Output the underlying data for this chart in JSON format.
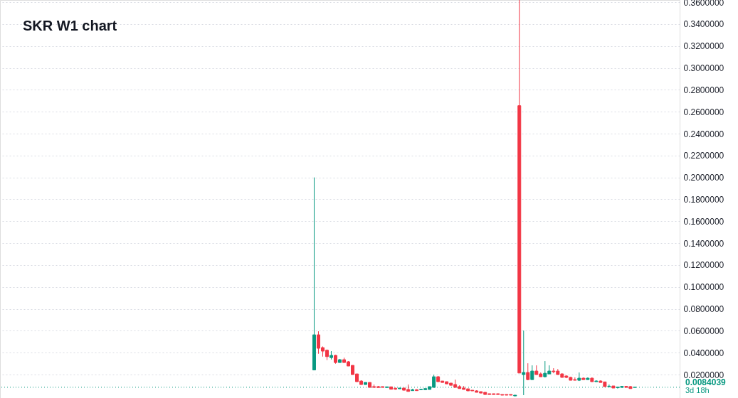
{
  "chart_data": {
    "type": "candlestick",
    "title": "SKR W1 chart",
    "categories": [
      null,
      null,
      null,
      null,
      null,
      null,
      null,
      null,
      null,
      null,
      null,
      null,
      null,
      null,
      null,
      null,
      null,
      null,
      null,
      null,
      null,
      null,
      null,
      null,
      null,
      null,
      null,
      null,
      null,
      null,
      null,
      null,
      null,
      null,
      null,
      null,
      null,
      null,
      null,
      null,
      null,
      null,
      null,
      null,
      null,
      null,
      null,
      null,
      null,
      null,
      null,
      null,
      null,
      null,
      null,
      null,
      null,
      null,
      null,
      null,
      null,
      null,
      null,
      null,
      null,
      null,
      null,
      null,
      null,
      null,
      null,
      null,
      null,
      null,
      null,
      null,
      null,
      null,
      null,
      null,
      null,
      null,
      null,
      null,
      null,
      null,
      null,
      null,
      null,
      null,
      null,
      null,
      null,
      null,
      null,
      null,
      null,
      null,
      null,
      null,
      null,
      null,
      null,
      null,
      null,
      null,
      null,
      null,
      null,
      null,
      null,
      null,
      null,
      null,
      null,
      null,
      null,
      null,
      null,
      null,
      null,
      null,
      null,
      null,
      null,
      null,
      null,
      null,
      null,
      null,
      null,
      null,
      null,
      null,
      null,
      null,
      null,
      null,
      null,
      null,
      null,
      null,
      null,
      null,
      null,
      null,
      null,
      null,
      null,
      null,
      null,
      null,
      null,
      null,
      null,
      null,
      null,
      null,
      null
    ],
    "ohlc": [
      null,
      null,
      null,
      null,
      null,
      null,
      null,
      null,
      null,
      null,
      null,
      null,
      null,
      null,
      null,
      null,
      null,
      null,
      null,
      null,
      null,
      null,
      null,
      null,
      null,
      null,
      null,
      null,
      null,
      null,
      null,
      null,
      null,
      null,
      null,
      null,
      null,
      null,
      null,
      null,
      null,
      null,
      null,
      null,
      null,
      null,
      null,
      null,
      null,
      null,
      null,
      null,
      null,
      null,
      null,
      null,
      null,
      null,
      null,
      null,
      null,
      null,
      null,
      null,
      null,
      null,
      null,
      null,
      null,
      null,
      null,
      null,
      null,
      [
        0.0242,
        0.2,
        0.024,
        0.0563
      ],
      [
        0.0563,
        0.0595,
        0.039,
        0.044
      ],
      [
        0.0446,
        0.0457,
        0.0364,
        0.0414
      ],
      [
        0.0422,
        0.0429,
        0.0332,
        0.0364
      ],
      [
        0.0355,
        0.0414,
        0.0338,
        0.0375
      ],
      [
        0.0375,
        0.038,
        0.0299,
        0.031
      ],
      [
        0.031,
        0.0342,
        0.031,
        0.0336
      ],
      [
        0.0336,
        0.0354,
        0.031,
        0.031
      ],
      [
        0.0317,
        0.0323,
        0.0278,
        0.0278
      ],
      [
        0.0284,
        0.0284,
        0.02,
        0.02
      ],
      [
        0.0206,
        0.0206,
        0.0135,
        0.0135
      ],
      [
        0.0141,
        0.0148,
        0.0109,
        0.0109
      ],
      [
        0.0109,
        0.0128,
        0.0109,
        0.0128
      ],
      [
        0.0128,
        0.0128,
        0.0083,
        0.0083
      ],
      [
        0.009,
        0.0109,
        0.0083,
        0.0083
      ],
      [
        0.009,
        0.0096,
        0.0082,
        0.0082
      ],
      [
        0.009,
        0.009,
        0.0083,
        0.0083
      ],
      [
        0.0082,
        0.0088,
        0.0082,
        0.0088
      ],
      [
        0.0088,
        0.0088,
        0.0066,
        0.0066
      ],
      [
        0.0075,
        0.0081,
        0.0062,
        0.0066
      ],
      [
        0.007,
        0.0077,
        0.007,
        0.0077
      ],
      [
        0.0077,
        0.0077,
        0.0057,
        0.0057
      ],
      [
        0.0064,
        0.0109,
        0.0046,
        0.0046
      ],
      [
        0.0053,
        0.007,
        0.0053,
        0.0062
      ],
      [
        0.0062,
        0.0066,
        0.0053,
        0.0053
      ],
      [
        0.0062,
        0.0066,
        0.0062,
        0.0066
      ],
      [
        0.0062,
        0.0072,
        0.0062,
        0.0072
      ],
      [
        0.0064,
        0.009,
        0.0064,
        0.009
      ],
      [
        0.0083,
        0.0198,
        0.0083,
        0.018
      ],
      [
        0.018,
        0.0187,
        0.0135,
        0.0135
      ],
      [
        0.0141,
        0.0141,
        0.0128,
        0.0128
      ],
      [
        0.0135,
        0.0135,
        0.0115,
        0.0115
      ],
      [
        0.0122,
        0.0122,
        0.0102,
        0.0102
      ],
      [
        0.0109,
        0.0154,
        0.0083,
        0.0083
      ],
      [
        0.009,
        0.0102,
        0.0072,
        0.0072
      ],
      [
        0.0077,
        0.0096,
        0.0064,
        0.0064
      ],
      [
        0.007,
        0.007,
        0.0051,
        0.0051
      ],
      [
        0.0057,
        0.0057,
        0.0051,
        0.0051
      ],
      [
        0.0051,
        0.0057,
        0.0038,
        0.0038
      ],
      [
        0.0044,
        0.0044,
        0.0031,
        0.0031
      ],
      [
        0.0038,
        0.0038,
        0.0018,
        0.0018
      ],
      [
        0.0025,
        0.0025,
        0.0018,
        0.0018
      ],
      [
        0.0025,
        0.0025,
        0.0018,
        0.0018
      ],
      [
        0.0025,
        0.0025,
        0.0018,
        0.0018
      ],
      [
        0.0018,
        0.0018,
        0.0012,
        0.0012
      ],
      [
        0.0018,
        0.0018,
        0.0012,
        0.0012
      ],
      [
        0.0018,
        0.0018,
        0.0012,
        0.0012
      ],
      [
        0.0005,
        0.0012,
        0.0005,
        0.0012
      ],
      [
        0.2655,
        0.362,
        0.0214,
        0.0214
      ],
      [
        0.02,
        0.0602,
        0.0012,
        0.0219
      ],
      [
        0.0219,
        0.0303,
        0.0148,
        0.0154
      ],
      [
        0.0154,
        0.0284,
        0.0154,
        0.0232
      ],
      [
        0.0232,
        0.0284,
        0.02,
        0.02
      ],
      [
        0.0206,
        0.0219,
        0.018,
        0.018
      ],
      [
        0.018,
        0.0323,
        0.0174,
        0.0212
      ],
      [
        0.0206,
        0.0284,
        0.0206,
        0.0232
      ],
      [
        0.0232,
        0.0258,
        0.0212,
        0.0226
      ],
      [
        0.0232,
        0.0251,
        0.02,
        0.02
      ],
      [
        0.0206,
        0.0212,
        0.0174,
        0.0174
      ],
      [
        0.0187,
        0.0193,
        0.0167,
        0.0174
      ],
      [
        0.0174,
        0.018,
        0.0148,
        0.0148
      ],
      [
        0.0154,
        0.0174,
        0.0148,
        0.0148
      ],
      [
        0.0148,
        0.0219,
        0.0141,
        0.0167
      ],
      [
        0.0167,
        0.0174,
        0.0154,
        0.0154
      ],
      [
        0.0154,
        0.0174,
        0.0154,
        0.0167
      ],
      [
        0.0167,
        0.0174,
        0.0135,
        0.0135
      ],
      [
        0.0135,
        0.0148,
        0.0135,
        0.0141
      ],
      [
        0.0141,
        0.0148,
        0.0128,
        0.0128
      ],
      [
        0.0133,
        0.0133,
        0.009,
        0.009
      ],
      [
        0.009,
        0.0109,
        0.0083,
        0.0094
      ],
      [
        0.0096,
        0.0096,
        0.0077,
        0.0077
      ],
      [
        0.0081,
        0.009,
        0.0072,
        0.0085
      ],
      [
        0.0083,
        0.0096,
        0.0081,
        0.0092
      ],
      [
        0.0092,
        0.0096,
        0.0083,
        0.0083
      ],
      [
        0.009,
        0.0096,
        0.0072,
        0.0072
      ],
      [
        0.0083,
        0.0084,
        0.0083,
        0.0084
      ],
      null,
      null,
      null,
      null,
      null,
      null,
      null,
      null,
      null,
      null
    ],
    "ylim": [
      -0.0014,
      0.362
    ],
    "yticks": [
      {
        "value": 0.02,
        "label": "0.0200000"
      },
      {
        "value": 0.04,
        "label": "0.0400000"
      },
      {
        "value": 0.06,
        "label": "0.0600000"
      },
      {
        "value": 0.08,
        "label": "0.0800000"
      },
      {
        "value": 0.1,
        "label": "0.1000000"
      },
      {
        "value": 0.12,
        "label": "0.1200000"
      },
      {
        "value": 0.14,
        "label": "0.1400000"
      },
      {
        "value": 0.16,
        "label": "0.1600000"
      },
      {
        "value": 0.18,
        "label": "0.1800000"
      },
      {
        "value": 0.2,
        "label": "0.2000000"
      },
      {
        "value": 0.22,
        "label": "0.2200000"
      },
      {
        "value": 0.24,
        "label": "0.2400000"
      },
      {
        "value": 0.26,
        "label": "0.2600000"
      },
      {
        "value": 0.28,
        "label": "0.2800000"
      },
      {
        "value": 0.3,
        "label": "0.3000000"
      },
      {
        "value": 0.32,
        "label": "0.3200000"
      },
      {
        "value": 0.34,
        "label": "0.3400000"
      },
      {
        "value": 0.36,
        "label": "0.3600000"
      }
    ],
    "grid": true,
    "ref_lines": [
      {
        "axis": "y",
        "value": 0.0084039,
        "label": "0.0084039",
        "color": "#089981",
        "line_style": "dotted"
      }
    ],
    "annotations": [
      "3d 18h"
    ]
  }
}
